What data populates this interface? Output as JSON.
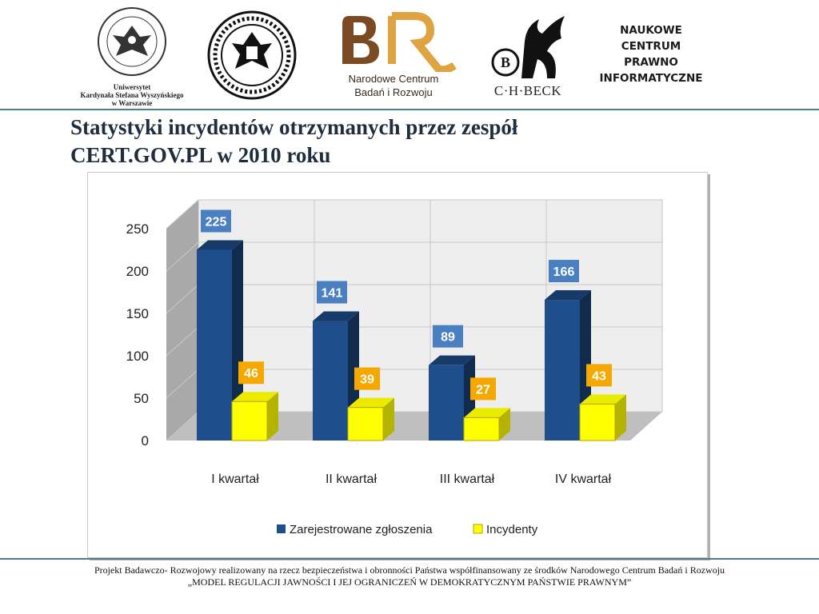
{
  "header": {
    "logo1": {
      "lines": [
        "Uniwersytet",
        "Kardynała Stefana Wyszyńskiego",
        "w Warszawie"
      ]
    },
    "logo2": {
      "name": "university-wratislaviensis-seal"
    },
    "logo3": {
      "monogram": "BR",
      "lines": [
        "Narodowe Centrum",
        "Badań i Rozwoju"
      ]
    },
    "logo4": {
      "text": "C·H·BECK"
    },
    "logo5": {
      "lines": [
        "NAUKOWE",
        "CENTRUM",
        "PRAWNO",
        "INFORMATYCZNE"
      ]
    }
  },
  "title_line1": "Statystyki incydentów otrzymanych przez zespół",
  "title_line2": "CERT.GOV.PL w 2010 roku",
  "colors": {
    "series1": "#1f4e8c",
    "series2": "#ffff00",
    "label1": "#4a7fc1",
    "label2": "#f5a800",
    "rule": "#4d7f8f"
  },
  "chart_data": {
    "type": "bar",
    "categories": [
      "I kwartał",
      "II kwartał",
      "III kwartał",
      "IV kwartał"
    ],
    "series": [
      {
        "name": "Zarejestrowane zgłoszenia",
        "values": [
          225,
          141,
          89,
          166
        ]
      },
      {
        "name": "Incydenty",
        "values": [
          46,
          39,
          27,
          43
        ]
      }
    ],
    "yticks": [
      0,
      50,
      100,
      150,
      200,
      250
    ],
    "ylim": [
      0,
      250
    ],
    "grid": true,
    "legend": "bottom",
    "style": "3d"
  },
  "footer": {
    "line1": "Projekt Badawczo- Rozwojowy realizowany na rzecz bezpieczeństwa i obronności Państwa współfinansowany ze środków Narodowego Centrum Badań i Rozwoju",
    "line2": "„MODEL REGULACJI JAWNOŚCI I JEJ OGRANICZEŃ W DEMOKRATYCZNYM PAŃSTWIE PRAWNYM”"
  }
}
